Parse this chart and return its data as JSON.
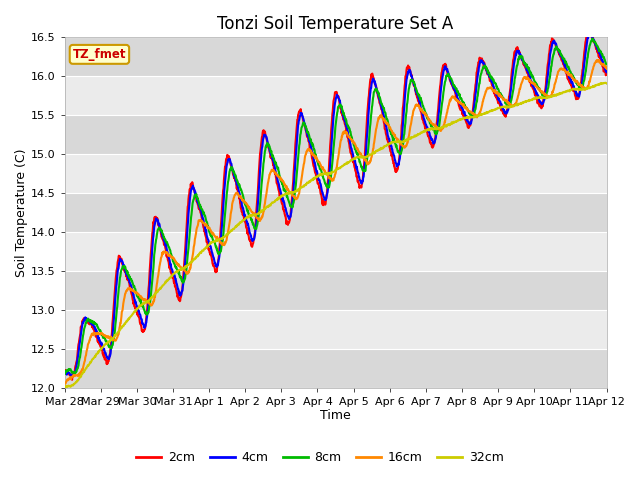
{
  "title": "Tonzi Soil Temperature Set A",
  "xlabel": "Time",
  "ylabel": "Soil Temperature (C)",
  "ylim": [
    12.0,
    16.5
  ],
  "legend_label": "TZ_fmet",
  "series_labels": [
    "2cm",
    "4cm",
    "8cm",
    "16cm",
    "32cm"
  ],
  "series_colors": [
    "#ff0000",
    "#0000ff",
    "#00bb00",
    "#ff8800",
    "#cccc00"
  ],
  "x_tick_labels": [
    "Mar 28",
    "Mar 29",
    "Mar 30",
    "Mar 31",
    "Apr 1",
    "Apr 2",
    "Apr 3",
    "Apr 4",
    "Apr 5",
    "Apr 6",
    "Apr 7",
    "Apr 8",
    "Apr 9",
    "Apr 10",
    "Apr 11",
    "Apr 12"
  ],
  "yticks": [
    12.0,
    12.5,
    13.0,
    13.5,
    14.0,
    14.5,
    15.0,
    15.5,
    16.0,
    16.5
  ],
  "band_color_dark": "#d8d8d8",
  "band_color_light": "#ebebeb",
  "axes_bg_color": "#ebebeb",
  "title_fontsize": 12,
  "axis_label_fontsize": 9,
  "tick_fontsize": 8,
  "legend_box_facecolor": "#ffffcc",
  "legend_box_edgecolor": "#cc9900",
  "legend_box_textcolor": "#cc0000"
}
